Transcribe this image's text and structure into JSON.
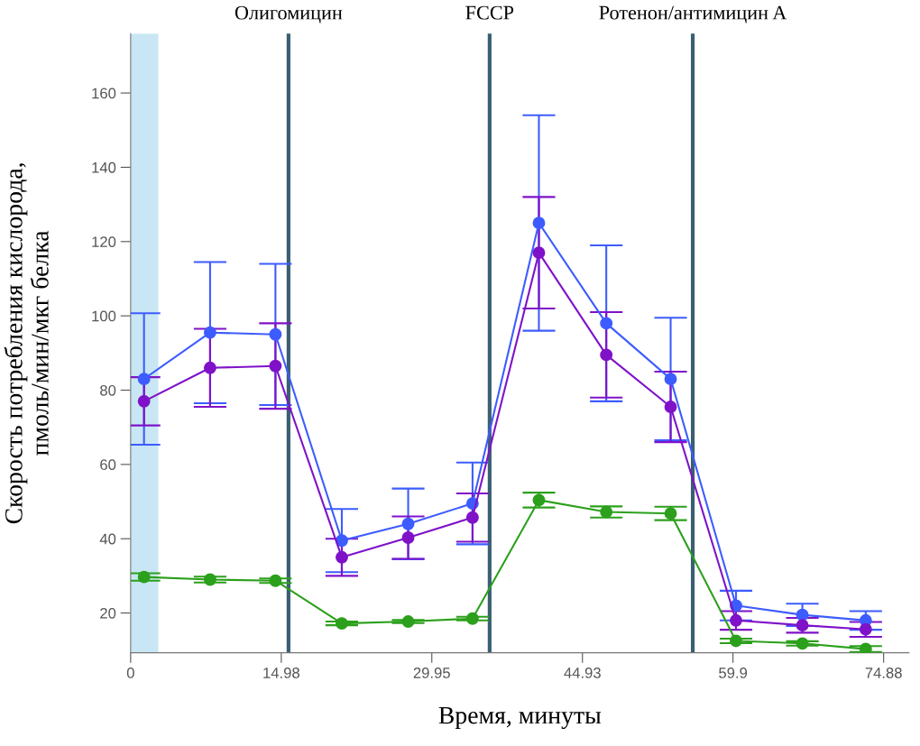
{
  "chart_data": {
    "type": "line",
    "xlabel": "Время, минуты",
    "ylabel": "Скорость потребления кислорода,\nпмоль/мин/мкг белка",
    "x": [
      1.33,
      7.9,
      14.4,
      21.0,
      27.6,
      34.0,
      40.6,
      47.3,
      53.7,
      60.2,
      66.8,
      73.1
    ],
    "series": [
      {
        "color": "#3d5cff",
        "values": [
          83,
          95.5,
          95,
          39.5,
          44,
          49.5,
          125,
          98,
          83,
          22,
          19.5,
          18
        ],
        "errors": [
          17.7,
          19,
          19,
          8.5,
          9.5,
          11,
          29,
          21,
          16.5,
          4,
          3,
          2.5
        ]
      },
      {
        "color": "#7f12c8",
        "values": [
          77,
          86,
          86.5,
          35,
          40.3,
          45.7,
          117,
          89.5,
          75.5,
          18,
          16.7,
          15.6
        ],
        "errors": [
          6.5,
          10.5,
          11.5,
          5,
          5.7,
          6.5,
          15,
          11.5,
          9.5,
          2.5,
          2,
          2
        ]
      },
      {
        "color": "#2ca01c",
        "values": [
          29.7,
          29,
          28.7,
          17.2,
          17.7,
          18.5,
          50.4,
          47.2,
          46.8,
          12.5,
          11.8,
          10.3
        ],
        "errors": [
          1,
          0.8,
          0.6,
          0.5,
          0.4,
          0.5,
          2,
          1.5,
          1.8,
          0.6,
          0.6,
          0.8
        ]
      }
    ],
    "xlim": [
      0,
      77.4
    ],
    "ylim": [
      9.3,
      176
    ],
    "xticks": [
      0,
      14.98,
      29.95,
      44.93,
      59.9,
      74.88
    ],
    "yticks": [
      20,
      40,
      60,
      80,
      100,
      120,
      140,
      160
    ],
    "ref_lines": [
      {
        "axis": "x",
        "value": 15.7,
        "label": "Олигомицин",
        "color": "#3a5f73"
      },
      {
        "axis": "x",
        "value": 35.7,
        "label": "FCCP",
        "color": "#3a5f73"
      },
      {
        "axis": "x",
        "value": 55.9,
        "label": "Ротенон/антимицин A",
        "color": "#3a5f73"
      }
    ],
    "bands": [
      {
        "axis": "x",
        "from": 0,
        "to": 2.75,
        "color": "#c8e6f3"
      }
    ],
    "marker": "circle",
    "line_style": "solid",
    "grid": false,
    "legend": false
  }
}
